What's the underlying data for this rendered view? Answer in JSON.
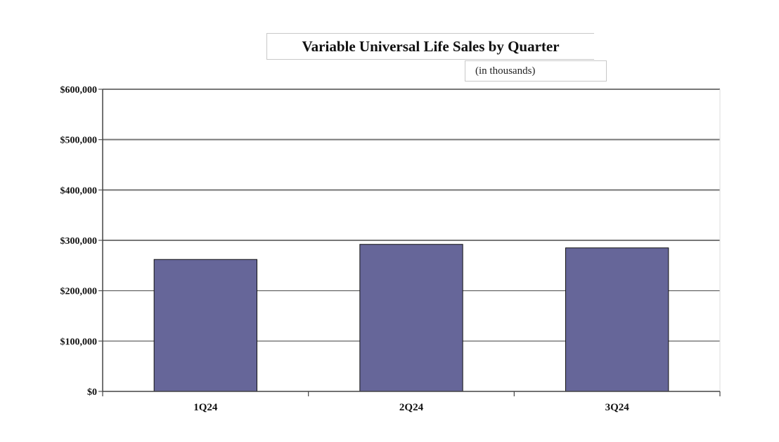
{
  "chart_data": {
    "type": "bar",
    "title": "Variable Universal Life Sales by Quarter",
    "subtitle": "(in thousands)",
    "categories": [
      "1Q24",
      "2Q24",
      "3Q24"
    ],
    "values": [
      262000,
      292000,
      285000
    ],
    "ylim": [
      0,
      600000
    ],
    "yticks": [
      {
        "value": 0,
        "label": "$0"
      },
      {
        "value": 100000,
        "label": "$100,000"
      },
      {
        "value": 200000,
        "label": "$200,000"
      },
      {
        "value": 300000,
        "label": "$300,000"
      },
      {
        "value": 400000,
        "label": "$400,000"
      },
      {
        "value": 500000,
        "label": "$500,000"
      },
      {
        "value": 600000,
        "label": "$600,000"
      }
    ],
    "grid": true,
    "legend": "none",
    "bar_color": "#666699"
  }
}
